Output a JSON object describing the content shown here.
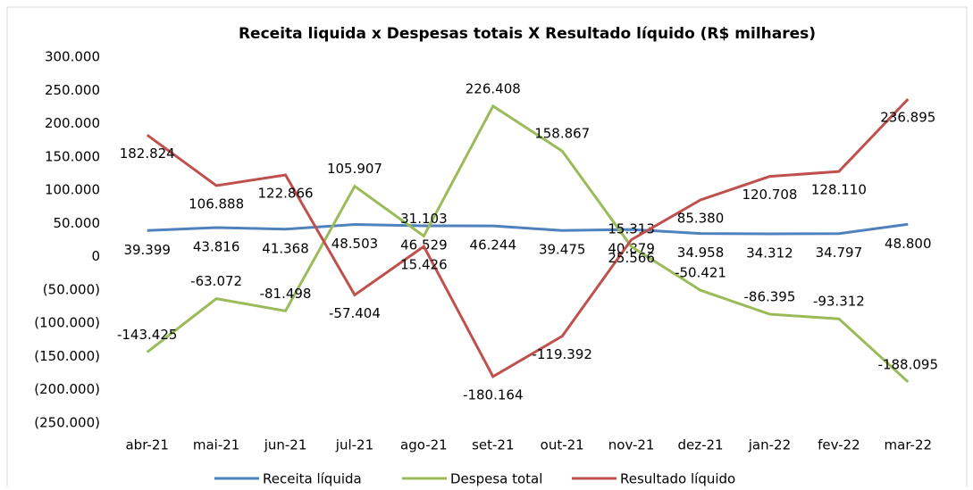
{
  "chart_data": {
    "type": "line",
    "title": "Receita liquida x Despesas totais X Resultado líquido (R$ milhares)",
    "categories": [
      "abr-21",
      "mai-21",
      "jun-21",
      "jul-21",
      "ago-21",
      "set-21",
      "out-21",
      "nov-21",
      "dez-21",
      "jan-22",
      "fev-22",
      "mar-22"
    ],
    "series": [
      {
        "name": "Receita líquida",
        "color": "#4f81bd",
        "values": [
          39399,
          43816,
          41368,
          48503,
          46529,
          46244,
          39475,
          40879,
          34958,
          34312,
          34797,
          48800
        ],
        "value_labels": [
          "39.399",
          "43.816",
          "41.368",
          "48.503",
          "46.529",
          "46.244",
          "39.475",
          "40.879",
          "34.958",
          "34.312",
          "34.797",
          "48.800"
        ]
      },
      {
        "name": "Despesa total",
        "color": "#9bbb59",
        "values": [
          -143425,
          -63072,
          -81498,
          105907,
          31103,
          226408,
          158867,
          15313,
          -50421,
          -86395,
          -93312,
          -188095
        ],
        "value_labels": [
          "-143.425",
          "-63.072",
          "-81.498",
          "105.907",
          "31.103",
          "226.408",
          "158.867",
          "15.313",
          "-50.421",
          "-86.395",
          "-93.312",
          "-188.095"
        ]
      },
      {
        "name": "Resultado líquido",
        "color": "#c0504d",
        "values": [
          182824,
          106888,
          122866,
          -57404,
          15426,
          -180164,
          -119392,
          25566,
          85380,
          120708,
          128110,
          236895
        ],
        "value_labels": [
          "182.824",
          "106.888",
          "122.866",
          "-57.404",
          "15.426",
          "-180.164",
          "-119.392",
          "25.566",
          "85.380",
          "120.708",
          "128.110",
          "236.895"
        ]
      }
    ],
    "ylim": [
      -250000,
      300000
    ],
    "yticks": [
      {
        "value": -250000,
        "label": "(250.000)"
      },
      {
        "value": -200000,
        "label": "(200.000)"
      },
      {
        "value": -150000,
        "label": "(150.000)"
      },
      {
        "value": -100000,
        "label": "(100.000)"
      },
      {
        "value": -50000,
        "label": "(50.000)"
      },
      0,
      {
        "value": 50000,
        "label": "50.000"
      },
      {
        "value": 100000,
        "label": "100.000"
      },
      {
        "value": 150000,
        "label": "150.000"
      },
      {
        "value": 200000,
        "label": "200.000"
      },
      {
        "value": 250000,
        "label": "250.000"
      },
      {
        "value": 300000,
        "label": "300.000"
      }
    ],
    "legend": "bottom"
  }
}
